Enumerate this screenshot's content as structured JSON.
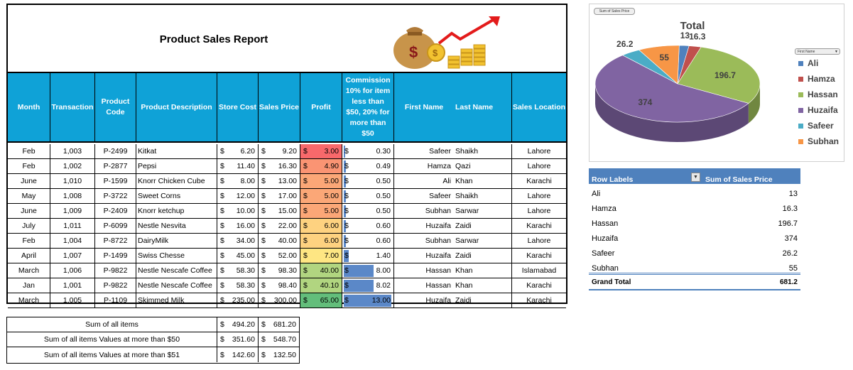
{
  "report": {
    "title": "Product Sales Report",
    "headers": [
      "Month",
      "Transaction",
      "Product Code",
      "Product Description",
      "Store Cost",
      "Sales Price",
      "Profit",
      "Commission 10% for item less than $50, 20% for more than $50",
      "First Name",
      "Last Name",
      "Sales Location"
    ],
    "rows": [
      {
        "month": "Feb",
        "transaction": "1,003",
        "code": "P-2499",
        "desc": "Kitkat",
        "cost": "6.20",
        "price": "9.20",
        "profit": "3.00",
        "commission": "0.30",
        "first": "Safeer",
        "last": "Shaikh",
        "location": "Lahore"
      },
      {
        "month": "Feb",
        "transaction": "1,002",
        "code": "P-2877",
        "desc": "Pepsi",
        "cost": "11.40",
        "price": "16.30",
        "profit": "4.90",
        "commission": "0.49",
        "first": "Hamza",
        "last": "Qazi",
        "location": "Lahore"
      },
      {
        "month": "June",
        "transaction": "1,010",
        "code": "P-1599",
        "desc": "Knorr Chicken Cube",
        "cost": "8.00",
        "price": "13.00",
        "profit": "5.00",
        "commission": "0.50",
        "first": "Ali",
        "last": "Khan",
        "location": "Karachi"
      },
      {
        "month": "May",
        "transaction": "1,008",
        "code": "P-3722",
        "desc": "Sweet Corns",
        "cost": "12.00",
        "price": "17.00",
        "profit": "5.00",
        "commission": "0.50",
        "first": "Safeer",
        "last": "Shaikh",
        "location": "Lahore"
      },
      {
        "month": "June",
        "transaction": "1,009",
        "code": "P-2409",
        "desc": "Knorr ketchup",
        "cost": "10.00",
        "price": "15.00",
        "profit": "5.00",
        "commission": "0.50",
        "first": "Subhan",
        "last": "Sarwar",
        "location": "Lahore"
      },
      {
        "month": "July",
        "transaction": "1,011",
        "code": "P-6099",
        "desc": "Nestle Nesvita",
        "cost": "16.00",
        "price": "22.00",
        "profit": "6.00",
        "commission": "0.60",
        "first": "Huzaifa",
        "last": "Zaidi",
        "location": "Karachi"
      },
      {
        "month": "Feb",
        "transaction": "1,004",
        "code": "P-8722",
        "desc": "DairyMilk",
        "cost": "34.00",
        "price": "40.00",
        "profit": "6.00",
        "commission": "0.60",
        "first": "Subhan",
        "last": "Sarwar",
        "location": "Lahore"
      },
      {
        "month": "April",
        "transaction": "1,007",
        "code": "P-1499",
        "desc": "Swiss Chesse",
        "cost": "45.00",
        "price": "52.00",
        "profit": "7.00",
        "commission": "1.40",
        "first": "Huzaifa",
        "last": "Zaidi",
        "location": "Karachi"
      },
      {
        "month": "March",
        "transaction": "1,006",
        "code": "P-9822",
        "desc": "Nestle Nescafe Coffee",
        "cost": "58.30",
        "price": "98.30",
        "profit": "40.00",
        "commission": "8.00",
        "first": "Hassan",
        "last": "Khan",
        "location": "Islamabad"
      },
      {
        "month": "Jan",
        "transaction": "1,001",
        "code": "P-9822",
        "desc": "Nestle Nescafe Coffee",
        "cost": "58.30",
        "price": "98.40",
        "profit": "40.10",
        "commission": "8.02",
        "first": "Hassan",
        "last": "Khan",
        "location": "Karachi"
      },
      {
        "month": "March",
        "transaction": "1,005",
        "code": "P-1109",
        "desc": "Skimmed Milk",
        "cost": "235.00",
        "price": "300.00",
        "profit": "65.00",
        "commission": "13.00",
        "first": "Huzaifa",
        "last": "Zaidi",
        "location": "Karachi"
      }
    ],
    "profit_colors": [
      "#f8696b",
      "#fa9473",
      "#fba777",
      "#fba777",
      "#fba777",
      "#fed280",
      "#fed280",
      "#fee683",
      "#b1d580",
      "#b1d580",
      "#63be7b"
    ],
    "commission_fraction": [
      0.02,
      0.04,
      0.04,
      0.04,
      0.04,
      0.05,
      0.05,
      0.11,
      0.62,
      0.62,
      1.0
    ]
  },
  "currency": "$",
  "summary": [
    {
      "label": "Sum of all items",
      "cost": "494.20",
      "price": "681.20"
    },
    {
      "label": "Sum of all items Values at more than $50",
      "cost": "351.60",
      "price": "548.70"
    },
    {
      "label": "Sum of all items Values at more than $51",
      "cost": "142.60",
      "price": "132.50"
    }
  ],
  "chart_data": {
    "type": "pie",
    "title": "Total",
    "field_button": "Sum of Sales Price",
    "filter_dropdown": "First Name",
    "categories": [
      "Ali",
      "Hamza",
      "Hassan",
      "Huzaifa",
      "Safeer",
      "Subhan"
    ],
    "values": [
      13,
      16.3,
      196.7,
      374,
      26.2,
      55
    ],
    "colors": [
      "#4f81bd",
      "#c0504d",
      "#9bbb59",
      "#8064a2",
      "#4bacc6",
      "#f79646"
    ],
    "legend": "right"
  },
  "pivot": {
    "header_labels": "Row Labels",
    "header_values": "Sum of Sales Price",
    "rows": [
      {
        "label": "Ali",
        "value": "13"
      },
      {
        "label": "Hamza",
        "value": "16.3"
      },
      {
        "label": "Hassan",
        "value": "196.7"
      },
      {
        "label": "Huzaifa",
        "value": "374"
      },
      {
        "label": "Safeer",
        "value": "26.2"
      },
      {
        "label": "Subhan",
        "value": "55"
      }
    ],
    "total_label": "Grand Total",
    "total_value": "681.2"
  }
}
